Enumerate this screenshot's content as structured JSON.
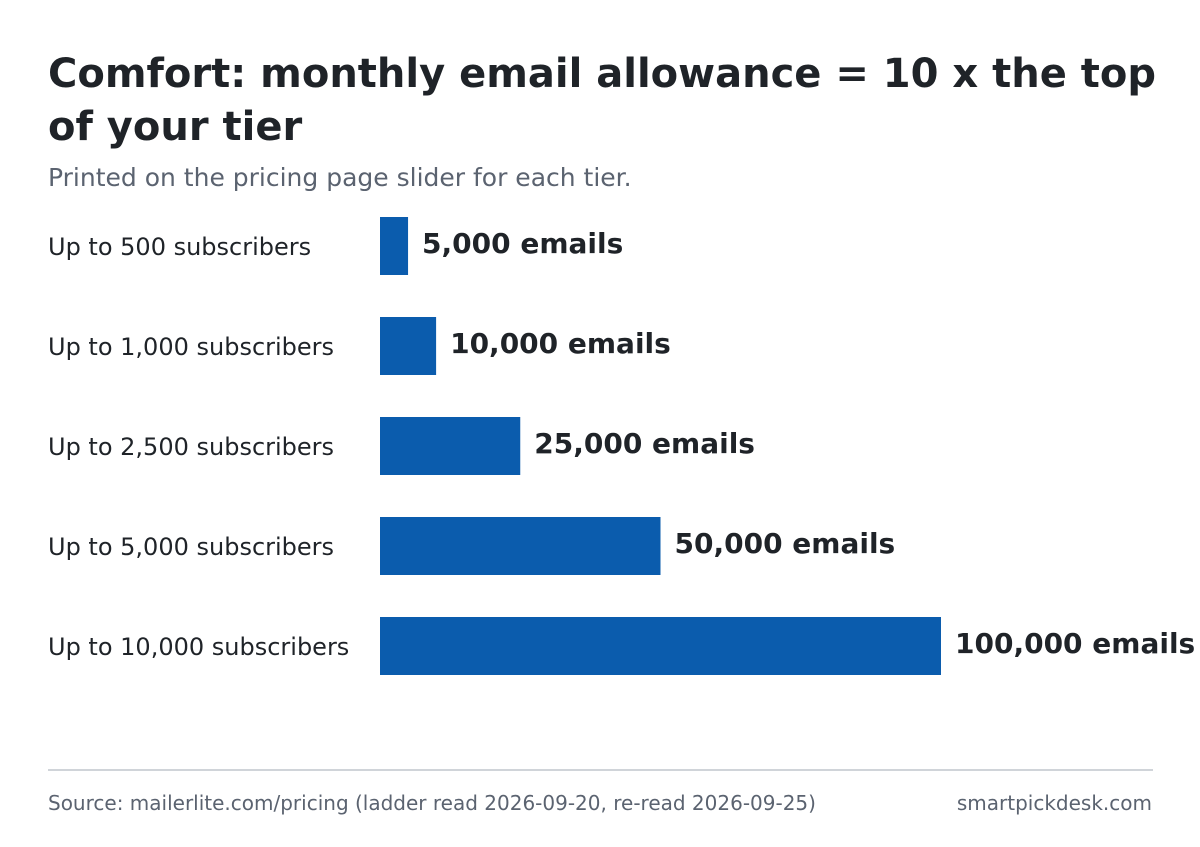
{
  "title": "Comfort: monthly email allowance = 10 x the top of your tier",
  "subtitle": "Printed on the pricing page slider for each tier.",
  "colors": {
    "bar": "#0b5cad"
  },
  "chart_data": {
    "type": "bar",
    "orientation": "horizontal",
    "title": "Comfort: monthly email allowance = 10 x the top of your tier",
    "subtitle": "Printed on the pricing page slider for each tier.",
    "categories": [
      "Up to 500 subscribers",
      "Up to 1,000 subscribers",
      "Up to 2,500 subscribers",
      "Up to 5,000 subscribers",
      "Up to 10,000 subscribers"
    ],
    "values": [
      5000,
      10000,
      25000,
      50000,
      100000
    ],
    "value_labels": [
      "5,000 emails",
      "10,000 emails",
      "25,000 emails",
      "50,000 emails",
      "100,000 emails"
    ],
    "xlim": [
      0,
      100000
    ],
    "grid": false,
    "legend": "none"
  },
  "footer": {
    "source": "Source: mailerlite.com/pricing (ladder read 2026-09-20, re-read 2026-09-25)",
    "brand": "smartpickdesk.com"
  }
}
